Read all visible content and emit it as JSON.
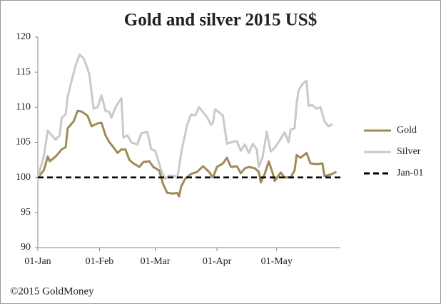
{
  "chart_data": {
    "type": "line",
    "title": "Gold and silver 2015 US$",
    "credit": "©2015 GoldMoney",
    "xlim": [
      0,
      152
    ],
    "xticks": [
      {
        "value": 0,
        "label": "01-Jan"
      },
      {
        "value": 31,
        "label": "01-Feb"
      },
      {
        "value": 59,
        "label": "01-Mar"
      },
      {
        "value": 90,
        "label": "01-Apr"
      },
      {
        "value": 120,
        "label": "01-May"
      }
    ],
    "ylim": [
      90,
      120
    ],
    "yticks": [
      90,
      95,
      100,
      105,
      110,
      115,
      120
    ],
    "grid": false,
    "legend": "right",
    "series": [
      {
        "name": "Gold",
        "color": "#a08b57",
        "dashed": false,
        "x": [
          0,
          3,
          5,
          6,
          9,
          12,
          14,
          15,
          18,
          20,
          22,
          24,
          25,
          27,
          30,
          32,
          34,
          36,
          38,
          40,
          42,
          44,
          46,
          48,
          51,
          53,
          56,
          58,
          61,
          63,
          65,
          68,
          70,
          71,
          72,
          74,
          77,
          80,
          83,
          86,
          88,
          90,
          93,
          95,
          97,
          100,
          102,
          104,
          106,
          109,
          111,
          112,
          114,
          116,
          118,
          119,
          122,
          124,
          127,
          129,
          130,
          132,
          135,
          137,
          140,
          143,
          144,
          147,
          150
        ],
        "values": [
          100,
          101,
          103,
          102.3,
          103,
          104,
          104.3,
          107,
          108,
          109.5,
          109.4,
          109,
          108.8,
          107.3,
          107.7,
          107.8,
          106,
          105,
          104.3,
          103.5,
          104,
          104,
          102.5,
          102,
          101.5,
          102.2,
          102.3,
          101.5,
          101,
          99,
          97.8,
          97.7,
          97.8,
          97.3,
          98.7,
          99.8,
          100.5,
          100.8,
          101.6,
          100.8,
          100,
          101.5,
          102,
          102.8,
          101.5,
          101.6,
          100.6,
          101.3,
          101.5,
          101.3,
          100.8,
          99.3,
          100.5,
          102.3,
          100.6,
          99.5,
          100.7,
          100,
          100,
          101,
          103.2,
          102.8,
          103.5,
          102,
          101.9,
          102,
          100.2,
          100.4,
          100.8
        ]
      },
      {
        "name": "Silver",
        "color": "#c9c9c9",
        "dashed": false,
        "x": [
          0,
          3,
          5,
          7,
          9,
          11,
          12,
          14,
          15,
          17,
          19,
          21,
          23,
          25,
          26,
          28,
          30,
          32,
          34,
          36,
          37,
          39,
          42,
          43,
          45,
          47,
          50,
          52,
          55,
          57,
          59,
          62,
          64,
          66,
          69,
          70,
          71,
          72,
          75,
          77,
          79,
          81,
          83,
          85,
          87,
          88,
          89,
          91,
          93,
          95,
          97,
          100,
          102,
          104,
          106,
          108,
          110,
          111,
          113,
          115,
          117,
          119,
          122,
          124,
          126,
          127,
          129,
          130,
          131,
          133,
          135,
          136,
          138,
          140,
          142,
          144,
          146,
          148
        ],
        "values": [
          100,
          103,
          106.7,
          106,
          105.4,
          106,
          108.5,
          109,
          111.5,
          113.8,
          116,
          117.5,
          117,
          115.5,
          114.5,
          109.8,
          110,
          111.7,
          109.5,
          109.3,
          108.5,
          110,
          111.3,
          105.7,
          106,
          105,
          104.7,
          106.3,
          106.5,
          104,
          103.8,
          101,
          99.8,
          100.3,
          100.2,
          99.9,
          101.5,
          103.5,
          107.5,
          109,
          108.8,
          110,
          109.3,
          108.6,
          107.5,
          107.8,
          109.7,
          109.3,
          108.8,
          104.8,
          105,
          105.2,
          103.8,
          104.7,
          103.5,
          104.8,
          104,
          101.5,
          103,
          106.5,
          103.7,
          104.2,
          105.5,
          106.4,
          105,
          106.8,
          107,
          110.5,
          112.4,
          113.3,
          113.8,
          110.2,
          110.3,
          109.8,
          110,
          108,
          107.3,
          107.6
        ]
      },
      {
        "name": "Jan-01",
        "color": "#000000",
        "dashed": true,
        "x": [
          0,
          152
        ],
        "values": [
          100,
          100
        ]
      }
    ]
  }
}
